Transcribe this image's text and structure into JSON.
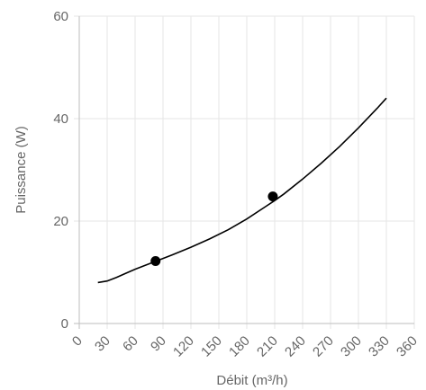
{
  "chart_data": {
    "type": "line",
    "xlabel": "Débit (m³/h)",
    "ylabel": "Puissance (W)",
    "xlim": [
      0,
      360
    ],
    "ylim": [
      0,
      60
    ],
    "x_ticks": [
      0,
      30,
      60,
      90,
      120,
      150,
      180,
      210,
      240,
      270,
      300,
      330,
      360
    ],
    "y_ticks": [
      0,
      20,
      40,
      60
    ],
    "grid": true,
    "series": [
      {
        "color": "#000000",
        "x": [
          20,
          30,
          40,
          50,
          60,
          70,
          80,
          90,
          100,
          120,
          140,
          160,
          180,
          200,
          210,
          220,
          240,
          260,
          280,
          300,
          320,
          330
        ],
        "y": [
          8.0,
          8.3,
          9.0,
          9.8,
          10.6,
          11.3,
          12.0,
          12.7,
          13.4,
          14.9,
          16.5,
          18.3,
          20.4,
          22.8,
          24.0,
          25.3,
          28.2,
          31.3,
          34.6,
          38.2,
          42.0,
          44.0
        ]
      }
    ],
    "points": [
      {
        "x": 82,
        "y": 12.2
      },
      {
        "x": 208,
        "y": 24.8
      }
    ]
  }
}
